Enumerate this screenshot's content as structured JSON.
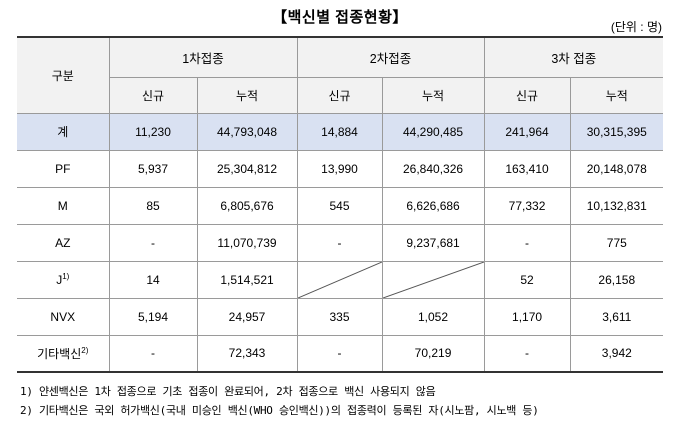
{
  "title": "【백신별 접종현황】",
  "unit": "(단위 : 명)",
  "table": {
    "category_label": "구분",
    "doses": [
      "1차접종",
      "2차접종",
      "3차 접종"
    ],
    "sub_headers": [
      "신규",
      "누적"
    ],
    "rows": [
      {
        "name": "계",
        "sup": "",
        "values": [
          "11,230",
          "44,793,048",
          "14,884",
          "44,290,485",
          "241,964",
          "30,315,395"
        ]
      },
      {
        "name": "PF",
        "sup": "",
        "values": [
          "5,937",
          "25,304,812",
          "13,990",
          "26,840,326",
          "163,410",
          "20,148,078"
        ]
      },
      {
        "name": "M",
        "sup": "",
        "values": [
          "85",
          "6,805,676",
          "545",
          "6,626,686",
          "77,332",
          "10,132,831"
        ]
      },
      {
        "name": "AZ",
        "sup": "",
        "values": [
          "-",
          "11,070,739",
          "-",
          "9,237,681",
          "-",
          "775"
        ]
      },
      {
        "name": "J",
        "sup": "1)",
        "values": [
          "14",
          "1,514,521",
          "",
          "",
          "52",
          "26,158"
        ]
      },
      {
        "name": "NVX",
        "sup": "",
        "values": [
          "5,194",
          "24,957",
          "335",
          "1,052",
          "1,170",
          "3,611"
        ]
      },
      {
        "name": "기타백신",
        "sup": "2)",
        "values": [
          "-",
          "72,343",
          "-",
          "70,219",
          "-",
          "3,942"
        ]
      }
    ]
  },
  "notes": [
    "1) 얀센백신은 1차 접종으로 기초 접종이 완료되어, 2차 접종으로 백신 사용되지 않음",
    "2) 기타백신은 국외 허가백신(국내 미승인 백신(WHO 승인백신))의 접종력이 등록된 자(시노팜, 시노백 등)"
  ]
}
